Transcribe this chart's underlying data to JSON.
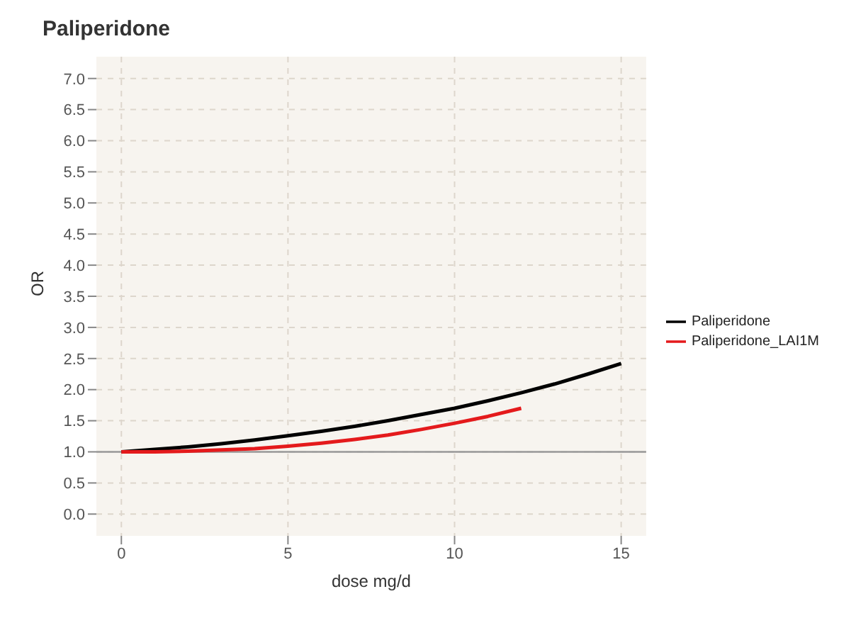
{
  "chart_data": {
    "type": "line",
    "title": "Paliperidone",
    "xlabel": "dose mg/d",
    "ylabel": "OR",
    "series": [
      {
        "name": "Paliperidone",
        "color": "#000000",
        "x": [
          0,
          1,
          2,
          3,
          4,
          5,
          6,
          7,
          8,
          9,
          10,
          11,
          12,
          13,
          14,
          15
        ],
        "values": [
          1.0,
          1.04,
          1.08,
          1.13,
          1.19,
          1.26,
          1.33,
          1.41,
          1.5,
          1.6,
          1.7,
          1.82,
          1.95,
          2.09,
          2.25,
          2.42
        ]
      },
      {
        "name": "Paliperidone_LAI1M",
        "color": "#e41a1c",
        "x": [
          0,
          1,
          2,
          3,
          4,
          5,
          6,
          7,
          8,
          9,
          10,
          11,
          12
        ],
        "values": [
          1.0,
          1.0,
          1.01,
          1.03,
          1.05,
          1.09,
          1.14,
          1.2,
          1.27,
          1.36,
          1.46,
          1.57,
          1.7
        ]
      }
    ],
    "xlim": [
      -0.75,
      15.75
    ],
    "xticks": [
      0,
      5,
      10,
      15
    ],
    "ylim": [
      -0.35,
      7.35
    ],
    "yticks": [
      {
        "value": 0,
        "label": "0.0"
      },
      0.5,
      {
        "value": 1,
        "label": "1.0"
      },
      1.5,
      {
        "value": 2,
        "label": "2.0"
      },
      2.5,
      {
        "value": 3,
        "label": "3.0"
      },
      3.5,
      {
        "value": 4,
        "label": "4.0"
      },
      4.5,
      {
        "value": 5,
        "label": "5.0"
      },
      5.5,
      {
        "value": 6,
        "label": "6.0"
      },
      6.5,
      {
        "value": 7,
        "label": "7.0"
      }
    ],
    "ref_lines": [
      {
        "axis": "y",
        "value": 1,
        "color": "#999999"
      }
    ],
    "grid": true,
    "legend": "right",
    "marker": "none",
    "line_style": "solid"
  }
}
